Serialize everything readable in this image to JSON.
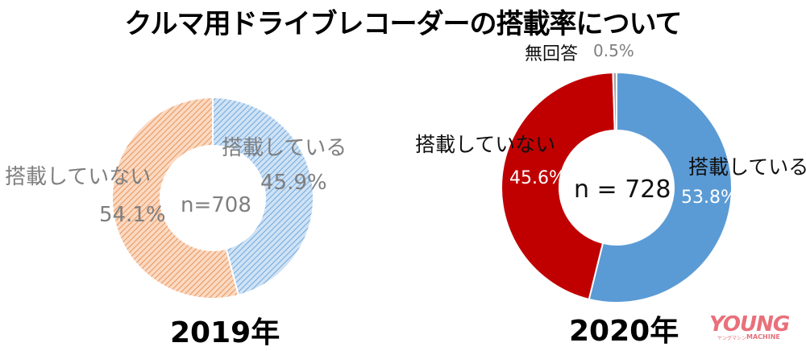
{
  "title": "クルマ用ドライブレコーダーの搭載率について",
  "charts": {
    "y2019": {
      "year_label": "2019年",
      "center_label": "n=708",
      "installed_label": "搭載している",
      "installed_pct": "45.9%",
      "not_installed_label": "搭載していない",
      "not_installed_pct": "54.1%"
    },
    "y2020": {
      "year_label": "2020年",
      "center_label": "n = 728",
      "installed_label": "搭載している",
      "installed_pct": "53.8%",
      "not_installed_label": "搭載していない",
      "not_installed_pct": "45.6%",
      "no_answer_label": "無回答",
      "no_answer_pct": "0.5%"
    }
  },
  "logo": {
    "main": "YOUNG",
    "sub": "MACHINE",
    "kana": "ヤングマシン"
  },
  "colors": {
    "installed_2019": "#9DC3E6",
    "not_installed_2019": "#F4B183",
    "installed_2020": "#5B9BD5",
    "not_installed_2020": "#C00000",
    "no_answer_2020": "#A5A5A5"
  },
  "chart_data": [
    {
      "type": "pie",
      "subtype": "donut",
      "title": "2019年",
      "n": 708,
      "categories": [
        "搭載している",
        "搭載していない"
      ],
      "values": [
        45.9,
        54.1
      ],
      "unit": "%",
      "colors": [
        "#9DC3E6",
        "#F4B183"
      ],
      "fill": "hatched",
      "center_text": "n=708"
    },
    {
      "type": "pie",
      "subtype": "donut",
      "title": "2020年",
      "n": 728,
      "categories": [
        "搭載している",
        "搭載していない",
        "無回答"
      ],
      "values": [
        53.8,
        45.6,
        0.5
      ],
      "unit": "%",
      "colors": [
        "#5B9BD5",
        "#C00000",
        "#A5A5A5"
      ],
      "fill": "solid",
      "center_text": "n = 728"
    }
  ]
}
